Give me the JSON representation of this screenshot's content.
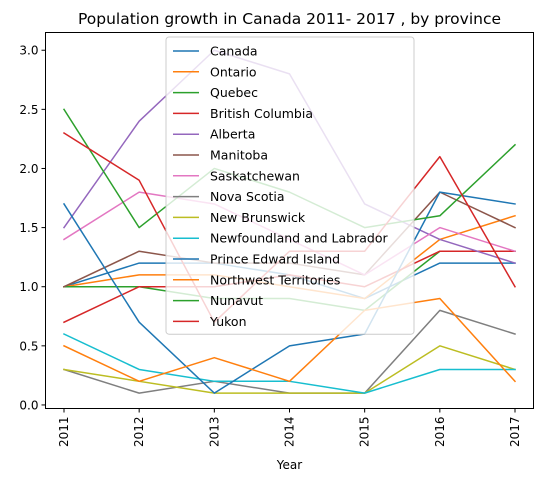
{
  "chart_data": {
    "type": "line",
    "title": "Population growth in Canada 2011- 2017 , by province",
    "xlabel": "Year",
    "ylabel": "",
    "categories": [
      "2011",
      "2012",
      "2013",
      "2014",
      "2015",
      "2016",
      "2017"
    ],
    "yticks": [
      "0.0",
      "0.5",
      "1.0",
      "1.5",
      "2.0",
      "2.5",
      "3.0"
    ],
    "ylim": [
      -0.03,
      3.15
    ],
    "grid": false,
    "legend_position": "upper-center",
    "series": [
      {
        "name": "Canada",
        "color": "#1f77b4",
        "values": [
          1.0,
          1.2,
          1.2,
          1.1,
          0.9,
          1.2,
          1.2
        ]
      },
      {
        "name": "Ontario",
        "color": "#ff7f0e",
        "values": [
          1.0,
          1.1,
          1.1,
          1.0,
          0.9,
          1.4,
          1.6
        ]
      },
      {
        "name": "Quebec",
        "color": "#2ca02c",
        "values": [
          1.0,
          1.0,
          0.9,
          0.9,
          0.8,
          1.3,
          1.3
        ]
      },
      {
        "name": "British Columbia",
        "color": "#d62728",
        "values": [
          0.7,
          1.0,
          1.0,
          1.1,
          1.0,
          1.3,
          1.3
        ]
      },
      {
        "name": "Alberta",
        "color": "#9467bd",
        "values": [
          1.5,
          2.4,
          3.0,
          2.8,
          1.7,
          1.4,
          1.2
        ]
      },
      {
        "name": "Manitoba",
        "color": "#8c564b",
        "values": [
          1.0,
          1.3,
          1.2,
          1.2,
          1.1,
          1.8,
          1.5
        ]
      },
      {
        "name": "Saskatchewan",
        "color": "#e377c2",
        "values": [
          1.4,
          1.8,
          1.7,
          1.4,
          1.1,
          1.5,
          1.3
        ]
      },
      {
        "name": "Nova Scotia",
        "color": "#7f7f7f",
        "values": [
          0.3,
          0.1,
          0.2,
          0.1,
          0.1,
          0.8,
          0.6
        ]
      },
      {
        "name": "New Brunswick",
        "color": "#bcbd22",
        "values": [
          0.3,
          0.2,
          0.1,
          0.1,
          0.1,
          0.5,
          0.3
        ]
      },
      {
        "name": "Newfoundland and Labrador",
        "color": "#17becf",
        "values": [
          0.6,
          0.3,
          0.2,
          0.2,
          0.1,
          0.3,
          0.3
        ]
      },
      {
        "name": "Prince Edward Island",
        "color": "#1f77b4",
        "values": [
          1.7,
          0.7,
          0.1,
          0.5,
          0.6,
          1.8,
          1.7
        ]
      },
      {
        "name": "Northwest Territories",
        "color": "#ff7f0e",
        "values": [
          0.5,
          0.2,
          0.4,
          0.2,
          0.8,
          0.9,
          0.2
        ]
      },
      {
        "name": "Nunavut",
        "color": "#2ca02c",
        "values": [
          2.5,
          1.5,
          2.0,
          1.8,
          1.5,
          1.6,
          2.2
        ]
      },
      {
        "name": "Yukon",
        "color": "#d62728",
        "values": [
          2.3,
          1.9,
          0.7,
          1.3,
          1.3,
          2.1,
          1.0
        ]
      }
    ]
  }
}
